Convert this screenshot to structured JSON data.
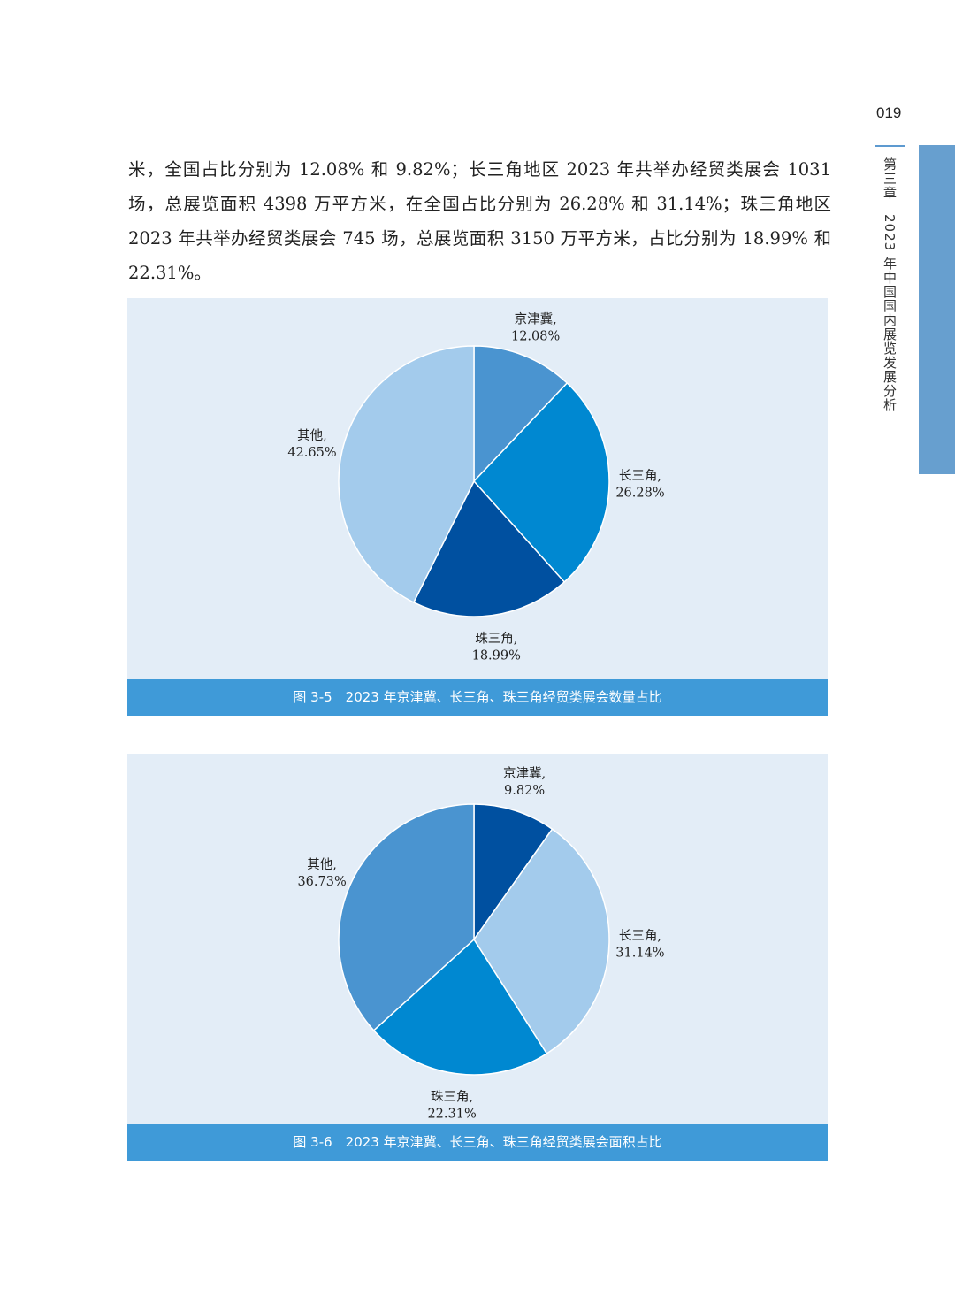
{
  "page_number": "019",
  "chapter": "第三章　2023 年中国国内展览发展分析",
  "paragraph": "米，全国占比分别为 12.08% 和 9.82%；长三角地区 2023 年共举办经贸类展会 1031 场，总展览面积 4398 万平方米，在全国占比分别为 26.28% 和 31.14%；珠三角地区 2023 年共举办经贸类展会 745 场，总展览面积 3150 万平方米，占比分别为 18.99% 和 22.31%。",
  "chart_data": [
    {
      "type": "pie",
      "title": "图 3-5　2023 年京津冀、长三角、珠三角经贸类展会数量占比",
      "slices": [
        {
          "label": "京津冀,",
          "pct": "12.08%",
          "value": 12.08,
          "color": "#4a94d0"
        },
        {
          "label": "长三角,",
          "pct": "26.28%",
          "value": 26.28,
          "color": "#0088d1"
        },
        {
          "label": "珠三角,",
          "pct": "18.99%",
          "value": 18.99,
          "color": "#0050a0"
        },
        {
          "label": "其他,",
          "pct": "42.65%",
          "value": 42.65,
          "color": "#a3cbec"
        }
      ]
    },
    {
      "type": "pie",
      "title": "图 3-6　2023 年京津冀、长三角、珠三角经贸类展会面积占比",
      "slices": [
        {
          "label": "京津冀,",
          "pct": "9.82%",
          "value": 9.82,
          "color": "#0050a0"
        },
        {
          "label": "长三角,",
          "pct": "31.14%",
          "value": 31.14,
          "color": "#a3cbec"
        },
        {
          "label": "珠三角,",
          "pct": "22.31%",
          "value": 22.31,
          "color": "#0088d1"
        },
        {
          "label": "其他,",
          "pct": "36.73%",
          "value": 36.73,
          "color": "#4a94d0"
        }
      ]
    }
  ]
}
